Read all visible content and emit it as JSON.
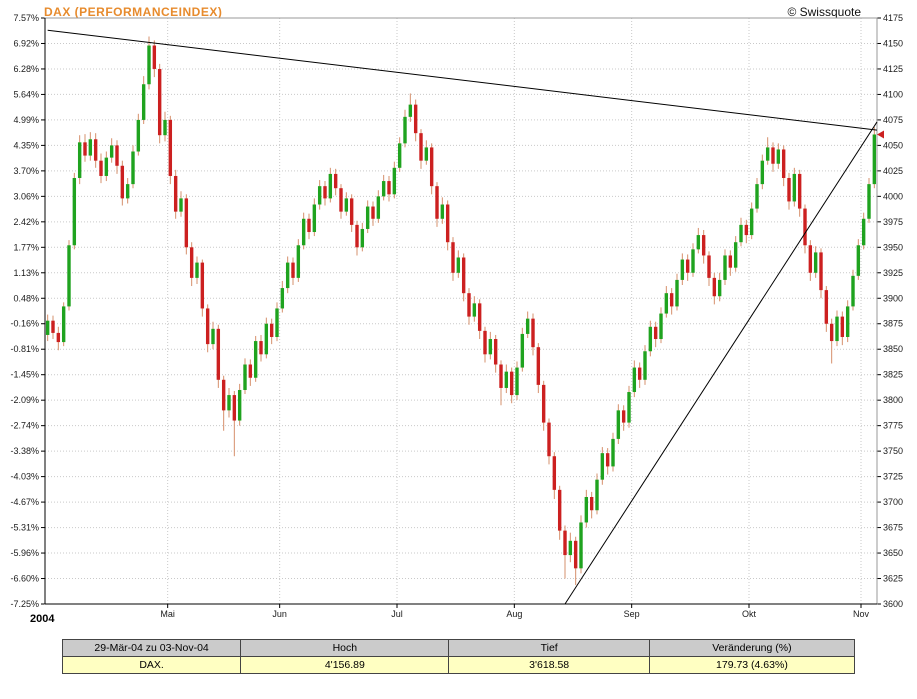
{
  "header": {
    "title": "DAX (PERFORMANCEINDEX)",
    "copyright": "© Swissquote"
  },
  "chart_data": {
    "type": "candlestick",
    "title": "DAX (PERFORMANCEINDEX)",
    "date_range": "29-Mär-04 zu 03-Nov-04",
    "base_price": 3881.0,
    "high": 4156.89,
    "low": 3618.58,
    "change_abs": 179.73,
    "change_pct": "4.63%",
    "price_axis": {
      "min": 3600,
      "max": 4175,
      "step": 25,
      "right_labels": [
        "4175",
        "4150",
        "4125",
        "4100",
        "4075",
        "4050",
        "4025",
        "4000",
        "3975",
        "3950",
        "3925",
        "3900",
        "3875",
        "3850",
        "3825",
        "3800",
        "3775",
        "3750",
        "3725",
        "3700",
        "3675",
        "3650",
        "3625",
        "3600"
      ],
      "left_labels_percent": [
        "7.57%",
        "6.92%",
        "6.28%",
        "5.64%",
        "4.99%",
        "4.35%",
        "3.70%",
        "3.06%",
        "2.42%",
        "1.77%",
        "1.13%",
        "0.48%",
        "-0.16%",
        "-0.81%",
        "-1.45%",
        "-2.09%",
        "-2.74%",
        "-3.38%",
        "-4.03%",
        "-4.67%",
        "-5.31%",
        "-5.96%",
        "-6.60%",
        "-7.25%"
      ]
    },
    "x_axis": {
      "year_label": "2004",
      "month_ticks": [
        {
          "label": "Mai",
          "index": 23
        },
        {
          "label": "Jun",
          "index": 44
        },
        {
          "label": "Jul",
          "index": 66
        },
        {
          "label": "Aug",
          "index": 88
        },
        {
          "label": "Sep",
          "index": 110
        },
        {
          "label": "Okt",
          "index": 132
        },
        {
          "label": "Nov",
          "index": 153
        }
      ]
    },
    "trendlines": [
      {
        "name": "descending-resistance",
        "from_index": 0,
        "from_price": 4163,
        "to_index": 156,
        "to_price": 4065
      },
      {
        "name": "ascending-support",
        "from_index": 97,
        "from_price": 3600,
        "to_index": 156,
        "to_price": 4073
      }
    ],
    "colors": {
      "up": "#1fa31f",
      "down": "#cc2020",
      "wick": "#d6906c",
      "grid": "#c9c9c9",
      "axis": "#000000",
      "title": "#e78b2d",
      "table_header_bg": "#cbcbcb",
      "table_row_bg": "#ffffc2"
    },
    "candles": [
      [
        3864,
        3884,
        3858,
        3878
      ],
      [
        3878,
        3883,
        3860,
        3866
      ],
      [
        3866,
        3872,
        3849,
        3857
      ],
      [
        3857,
        3896,
        3853,
        3892
      ],
      [
        3892,
        3957,
        3888,
        3952
      ],
      [
        3952,
        4023,
        3948,
        4018
      ],
      [
        4018,
        4060,
        4012,
        4053
      ],
      [
        4053,
        4061,
        4034,
        4040
      ],
      [
        4040,
        4063,
        4035,
        4056
      ],
      [
        4056,
        4062,
        4028,
        4035
      ],
      [
        4035,
        4042,
        4013,
        4020
      ],
      [
        4020,
        4044,
        4015,
        4038
      ],
      [
        4038,
        4057,
        4033,
        4050
      ],
      [
        4050,
        4055,
        4022,
        4030
      ],
      [
        4030,
        4035,
        3991,
        3998
      ],
      [
        3998,
        4018,
        3993,
        4012
      ],
      [
        4012,
        4050,
        4008,
        4044
      ],
      [
        4044,
        4081,
        4040,
        4075
      ],
      [
        4075,
        4118,
        4071,
        4110
      ],
      [
        4110,
        4156.9,
        4105,
        4148
      ],
      [
        4148,
        4153,
        4117,
        4125
      ],
      [
        4125,
        4130,
        4052,
        4060
      ],
      [
        4060,
        4083,
        4054,
        4075
      ],
      [
        4075,
        4079,
        4012,
        4020
      ],
      [
        4020,
        4026,
        3978,
        3985
      ],
      [
        3985,
        4005,
        3980,
        3998
      ],
      [
        3998,
        4002,
        3943,
        3950
      ],
      [
        3950,
        3955,
        3912,
        3920
      ],
      [
        3920,
        3941,
        3914,
        3935
      ],
      [
        3935,
        3938,
        3882,
        3890
      ],
      [
        3890,
        3894,
        3847,
        3855
      ],
      [
        3855,
        3877,
        3850,
        3870
      ],
      [
        3870,
        3874,
        3812,
        3820
      ],
      [
        3820,
        3824,
        3770,
        3790
      ],
      [
        3790,
        3812,
        3783,
        3805
      ],
      [
        3805,
        3809,
        3745,
        3780
      ],
      [
        3780,
        3816,
        3775,
        3810
      ],
      [
        3810,
        3841,
        3806,
        3835
      ],
      [
        3835,
        3840,
        3814,
        3822
      ],
      [
        3822,
        3863,
        3818,
        3858
      ],
      [
        3858,
        3864,
        3838,
        3845
      ],
      [
        3845,
        3881,
        3841,
        3875
      ],
      [
        3875,
        3880,
        3855,
        3862
      ],
      [
        3862,
        3896,
        3858,
        3890
      ],
      [
        3890,
        3917,
        3886,
        3910
      ],
      [
        3910,
        3941,
        3905,
        3935
      ],
      [
        3935,
        3940,
        3913,
        3920
      ],
      [
        3920,
        3958,
        3916,
        3952
      ],
      [
        3952,
        3984,
        3948,
        3978
      ],
      [
        3978,
        3983,
        3958,
        3965
      ],
      [
        3965,
        3998,
        3961,
        3992
      ],
      [
        3992,
        4016,
        3987,
        4010
      ],
      [
        4010,
        4015,
        3991,
        3998
      ],
      [
        3998,
        4028,
        3994,
        4022
      ],
      [
        4022,
        4027,
        4001,
        4008
      ],
      [
        4008,
        4012,
        3978,
        3985
      ],
      [
        3985,
        4004,
        3981,
        3998
      ],
      [
        3998,
        4002,
        3965,
        3972
      ],
      [
        3972,
        3976,
        3942,
        3950
      ],
      [
        3950,
        3974,
        3946,
        3968
      ],
      [
        3968,
        3996,
        3964,
        3990
      ],
      [
        3990,
        3995,
        3971,
        3978
      ],
      [
        3978,
        4006,
        3974,
        4000
      ],
      [
        4000,
        4021,
        3996,
        4015
      ],
      [
        4015,
        4020,
        3995,
        4002
      ],
      [
        4002,
        4034,
        3998,
        4028
      ],
      [
        4028,
        4058,
        4024,
        4052
      ],
      [
        4052,
        4085,
        4048,
        4078
      ],
      [
        4078,
        4101,
        4073,
        4090
      ],
      [
        4090,
        4095,
        4054,
        4062
      ],
      [
        4062,
        4066,
        4027,
        4035
      ],
      [
        4035,
        4055,
        4031,
        4048
      ],
      [
        4048,
        4052,
        4002,
        4010
      ],
      [
        4010,
        4014,
        3970,
        3978
      ],
      [
        3978,
        3999,
        3973,
        3992
      ],
      [
        3992,
        3996,
        3947,
        3955
      ],
      [
        3955,
        3960,
        3917,
        3925
      ],
      [
        3925,
        3947,
        3920,
        3940
      ],
      [
        3940,
        3944,
        3897,
        3905
      ],
      [
        3905,
        3910,
        3874,
        3882
      ],
      [
        3882,
        3902,
        3877,
        3895
      ],
      [
        3895,
        3899,
        3860,
        3868
      ],
      [
        3868,
        3872,
        3837,
        3845
      ],
      [
        3845,
        3867,
        3840,
        3860
      ],
      [
        3860,
        3864,
        3827,
        3835
      ],
      [
        3835,
        3839,
        3795,
        3812
      ],
      [
        3812,
        3835,
        3807,
        3828
      ],
      [
        3828,
        3832,
        3797,
        3805
      ],
      [
        3805,
        3838,
        3800,
        3832
      ],
      [
        3832,
        3871,
        3828,
        3865
      ],
      [
        3865,
        3887,
        3861,
        3880
      ],
      [
        3880,
        3885,
        3844,
        3852
      ],
      [
        3852,
        3856,
        3807,
        3815
      ],
      [
        3815,
        3819,
        3770,
        3778
      ],
      [
        3778,
        3782,
        3737,
        3745
      ],
      [
        3745,
        3749,
        3703,
        3712
      ],
      [
        3712,
        3716,
        3663,
        3672
      ],
      [
        3672,
        3677,
        3625,
        3648
      ],
      [
        3648,
        3670,
        3641,
        3662
      ],
      [
        3662,
        3666,
        3618.6,
        3635
      ],
      [
        3635,
        3687,
        3630,
        3680
      ],
      [
        3680,
        3712,
        3675,
        3705
      ],
      [
        3705,
        3710,
        3684,
        3692
      ],
      [
        3692,
        3728,
        3688,
        3722
      ],
      [
        3722,
        3754,
        3717,
        3748
      ],
      [
        3748,
        3753,
        3727,
        3735
      ],
      [
        3735,
        3768,
        3730,
        3762
      ],
      [
        3762,
        3796,
        3757,
        3790
      ],
      [
        3790,
        3795,
        3770,
        3778
      ],
      [
        3778,
        3814,
        3773,
        3808
      ],
      [
        3808,
        3839,
        3803,
        3832
      ],
      [
        3832,
        3837,
        3812,
        3820
      ],
      [
        3820,
        3854,
        3815,
        3848
      ],
      [
        3848,
        3878,
        3843,
        3872
      ],
      [
        3872,
        3877,
        3852,
        3860
      ],
      [
        3860,
        3891,
        3856,
        3885
      ],
      [
        3885,
        3912,
        3881,
        3905
      ],
      [
        3905,
        3910,
        3884,
        3892
      ],
      [
        3892,
        3924,
        3888,
        3918
      ],
      [
        3918,
        3944,
        3913,
        3938
      ],
      [
        3938,
        3943,
        3917,
        3925
      ],
      [
        3925,
        3954,
        3921,
        3948
      ],
      [
        3948,
        3969,
        3944,
        3962
      ],
      [
        3962,
        3967,
        3934,
        3942
      ],
      [
        3942,
        3946,
        3912,
        3920
      ],
      [
        3920,
        3925,
        3894,
        3902
      ],
      [
        3902,
        3925,
        3897,
        3918
      ],
      [
        3918,
        3948,
        3913,
        3942
      ],
      [
        3942,
        3947,
        3922,
        3930
      ],
      [
        3930,
        3961,
        3926,
        3955
      ],
      [
        3955,
        3979,
        3951,
        3972
      ],
      [
        3972,
        3977,
        3954,
        3962
      ],
      [
        3962,
        3994,
        3958,
        3988
      ],
      [
        3988,
        4018,
        3984,
        4012
      ],
      [
        4012,
        4041,
        4007,
        4035
      ],
      [
        4035,
        4058,
        4031,
        4048
      ],
      [
        4048,
        4053,
        4024,
        4032
      ],
      [
        4032,
        4052,
        4027,
        4046
      ],
      [
        4046,
        4050,
        4010,
        4018
      ],
      [
        4018,
        4023,
        3987,
        3995
      ],
      [
        3995,
        4028,
        3990,
        4022
      ],
      [
        4022,
        4026,
        3980,
        3988
      ],
      [
        3988,
        3992,
        3944,
        3952
      ],
      [
        3952,
        3957,
        3917,
        3925
      ],
      [
        3925,
        3951,
        3920,
        3945
      ],
      [
        3945,
        3949,
        3900,
        3908
      ],
      [
        3908,
        3912,
        3867,
        3875
      ],
      [
        3875,
        3880,
        3836,
        3858
      ],
      [
        3858,
        3888,
        3853,
        3882
      ],
      [
        3882,
        3887,
        3854,
        3862
      ],
      [
        3862,
        3898,
        3857,
        3892
      ],
      [
        3892,
        3928,
        3888,
        3922
      ],
      [
        3922,
        3958,
        3918,
        3952
      ],
      [
        3952,
        3984,
        3948,
        3978
      ],
      [
        3978,
        4018,
        3974,
        4012
      ],
      [
        4012,
        4068,
        4008,
        4060.7
      ]
    ]
  },
  "table": {
    "headers": [
      "29-Mär-04 zu 03-Nov-04",
      "Hoch",
      "Tief",
      "Veränderung (%)"
    ],
    "rows": [
      [
        "DAX.",
        "4'156.89",
        "3'618.58",
        "179.73 (4.63%)"
      ]
    ]
  }
}
